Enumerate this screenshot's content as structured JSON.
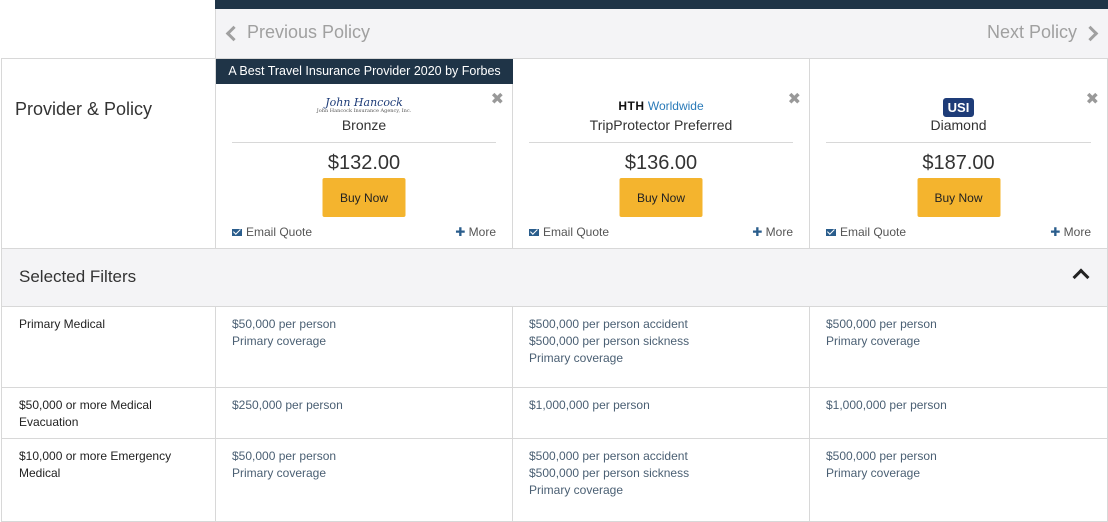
{
  "nav": {
    "prev_label": "Previous Policy",
    "next_label": "Next Policy"
  },
  "provider_section": {
    "label": "Provider & Policy"
  },
  "policies": [
    {
      "banner": "A Best Travel Insurance Provider 2020 by Forbes",
      "logo_icon": "john-hancock-logo",
      "name": "Bronze",
      "price": "$132.00",
      "buy_label": "Buy Now",
      "email_label": "Email Quote",
      "more_label": "More"
    },
    {
      "banner": "",
      "logo_icon": "hth-worldwide-logo",
      "logo_text_bold": "HTH",
      "logo_text_rest": "Worldwide",
      "name": "TripProtector Preferred",
      "price": "$136.00",
      "buy_label": "Buy Now",
      "email_label": "Email Quote",
      "more_label": "More"
    },
    {
      "banner": "",
      "logo_icon": "usi-logo",
      "logo_text": "USI",
      "name": "Diamond",
      "price": "$187.00",
      "buy_label": "Buy Now",
      "email_label": "Email Quote",
      "more_label": "More"
    }
  ],
  "filters": {
    "title": "Selected Filters"
  },
  "rows": [
    {
      "label": "Primary Medical",
      "values": [
        [
          "$50,000 per person",
          "Primary coverage"
        ],
        [
          "$500,000 per person accident",
          "$500,000 per person sickness",
          "Primary coverage"
        ],
        [
          "$500,000 per person",
          "Primary coverage"
        ]
      ]
    },
    {
      "label": "$50,000 or more Medical Evacuation",
      "values": [
        [
          "$250,000 per person"
        ],
        [
          "$1,000,000 per person"
        ],
        [
          "$1,000,000 per person"
        ]
      ]
    },
    {
      "label": "$10,000 or more Emergency Medical",
      "values": [
        [
          "$50,000 per person",
          "Primary coverage"
        ],
        [
          "$500,000 per person accident",
          "$500,000 per person sickness",
          "Primary coverage"
        ],
        [
          "$500,000 per person",
          "Primary coverage"
        ]
      ]
    }
  ],
  "colors": {
    "navy": "#1f3447",
    "buy_button": "#f4b42e",
    "value_text": "#4a5f73",
    "icon_blue": "#2a5d8c"
  }
}
